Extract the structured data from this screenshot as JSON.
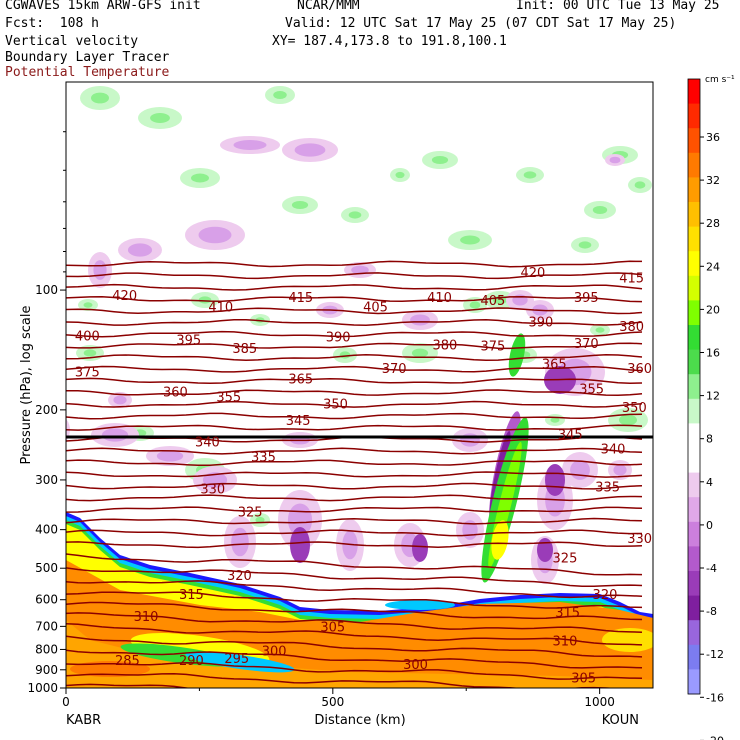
{
  "header": {
    "model": "CGWAVES 15km ARW-GFS init",
    "org": "NCAR/MMM",
    "init": "Init: 00 UTC Tue 13 May 25",
    "fcst": "Fcst:  108 h",
    "valid": "Valid: 12 UTC Sat 17 May 25 (07 CDT Sat 17 May 25)",
    "field1": "Vertical velocity",
    "xy": "XY= 187.4,173.8 to 191.8,100.1",
    "field2": "Boundary Layer Tracer",
    "field3": "Potential Temperature"
  },
  "colors": {
    "theta_contour": "#8b0000",
    "field3_text": "#8b1a1a",
    "pbl_top": "#1a1aff"
  },
  "chart_data": {
    "type": "heatmap",
    "xlabel": "Distance (km)",
    "ylabel": "Pressure (hPa), log scale",
    "x_ticks": [
      0,
      500,
      1000
    ],
    "xlim": [
      0,
      1100
    ],
    "y_ticks": [
      100,
      200,
      300,
      400,
      500,
      600,
      700,
      800,
      900,
      1000
    ],
    "ylim": [
      1000,
      30
    ],
    "y_scale": "log",
    "x_endpoints": {
      "left": "KABR",
      "right": "KOUN"
    },
    "colorbar": {
      "unit": "cm s⁻¹",
      "labels": [
        "36",
        "32",
        "28",
        "24",
        "20",
        "16",
        "12",
        "8",
        "4",
        "0",
        "-4",
        "-8",
        "-12",
        "-16",
        "-20"
      ],
      "colors": [
        "#ff0000",
        "#ff2a00",
        "#ff5200",
        "#ff7a00",
        "#ff9c00",
        "#ffbf00",
        "#ffe000",
        "#ffff00",
        "#d4ff00",
        "#7fff00",
        "#33dd33",
        "#4cdc4c",
        "#8ef08e",
        "#c8f8c8",
        "#ffffff",
        "#ffffff",
        "#eecbee",
        "#e0a8e8",
        "#cc7fdd",
        "#b35acc",
        "#9a3cb8",
        "#7f1f9f",
        "#9966dd",
        "#7c7cf0",
        "#9a9aff"
      ]
    },
    "theta_labels": [
      {
        "v": "420",
        "x": 110,
        "p": 103
      },
      {
        "v": "410",
        "x": 290,
        "p": 110
      },
      {
        "v": "415",
        "x": 440,
        "p": 104
      },
      {
        "v": "410",
        "x": 700,
        "p": 104
      },
      {
        "v": "405",
        "x": 800,
        "p": 106
      },
      {
        "v": "420",
        "x": 875,
        "p": 90
      },
      {
        "v": "395",
        "x": 975,
        "p": 104
      },
      {
        "v": "415",
        "x": 1060,
        "p": 93
      },
      {
        "v": "400",
        "x": 40,
        "p": 130
      },
      {
        "v": "395",
        "x": 230,
        "p": 133
      },
      {
        "v": "385",
        "x": 335,
        "p": 140
      },
      {
        "v": "405",
        "x": 580,
        "p": 110
      },
      {
        "v": "390",
        "x": 510,
        "p": 131
      },
      {
        "v": "380",
        "x": 710,
        "p": 137
      },
      {
        "v": "375",
        "x": 800,
        "p": 138
      },
      {
        "v": "390",
        "x": 890,
        "p": 120
      },
      {
        "v": "370",
        "x": 975,
        "p": 136
      },
      {
        "v": "380",
        "x": 1060,
        "p": 123
      },
      {
        "v": "375",
        "x": 40,
        "p": 160
      },
      {
        "v": "365",
        "x": 440,
        "p": 167
      },
      {
        "v": "370",
        "x": 615,
        "p": 157
      },
      {
        "v": "365",
        "x": 915,
        "p": 153
      },
      {
        "v": "360",
        "x": 1075,
        "p": 157
      },
      {
        "v": "360",
        "x": 205,
        "p": 180
      },
      {
        "v": "355",
        "x": 305,
        "p": 185
      },
      {
        "v": "350",
        "x": 505,
        "p": 193
      },
      {
        "v": "355",
        "x": 985,
        "p": 177
      },
      {
        "v": "345",
        "x": 435,
        "p": 212
      },
      {
        "v": "350",
        "x": 1065,
        "p": 197
      },
      {
        "v": "340",
        "x": 265,
        "p": 240
      },
      {
        "v": "345",
        "x": 945,
        "p": 230
      },
      {
        "v": "340",
        "x": 1025,
        "p": 250
      },
      {
        "v": "335",
        "x": 370,
        "p": 262
      },
      {
        "v": "330",
        "x": 275,
        "p": 315
      },
      {
        "v": "335",
        "x": 1015,
        "p": 312
      },
      {
        "v": "325",
        "x": 345,
        "p": 360
      },
      {
        "v": "330",
        "x": 1075,
        "p": 420
      },
      {
        "v": "325",
        "x": 935,
        "p": 470
      },
      {
        "v": "320",
        "x": 325,
        "p": 520
      },
      {
        "v": "320",
        "x": 1010,
        "p": 580
      },
      {
        "v": "315",
        "x": 235,
        "p": 580
      },
      {
        "v": "315",
        "x": 940,
        "p": 645
      },
      {
        "v": "310",
        "x": 150,
        "p": 660
      },
      {
        "v": "305",
        "x": 500,
        "p": 700
      },
      {
        "v": "310",
        "x": 935,
        "p": 760
      },
      {
        "v": "300",
        "x": 390,
        "p": 805
      },
      {
        "v": "295",
        "x": 320,
        "p": 840
      },
      {
        "v": "290",
        "x": 235,
        "p": 850
      },
      {
        "v": "285",
        "x": 115,
        "p": 850
      },
      {
        "v": "300",
        "x": 655,
        "p": 870
      },
      {
        "v": "305",
        "x": 970,
        "p": 940
      }
    ]
  }
}
